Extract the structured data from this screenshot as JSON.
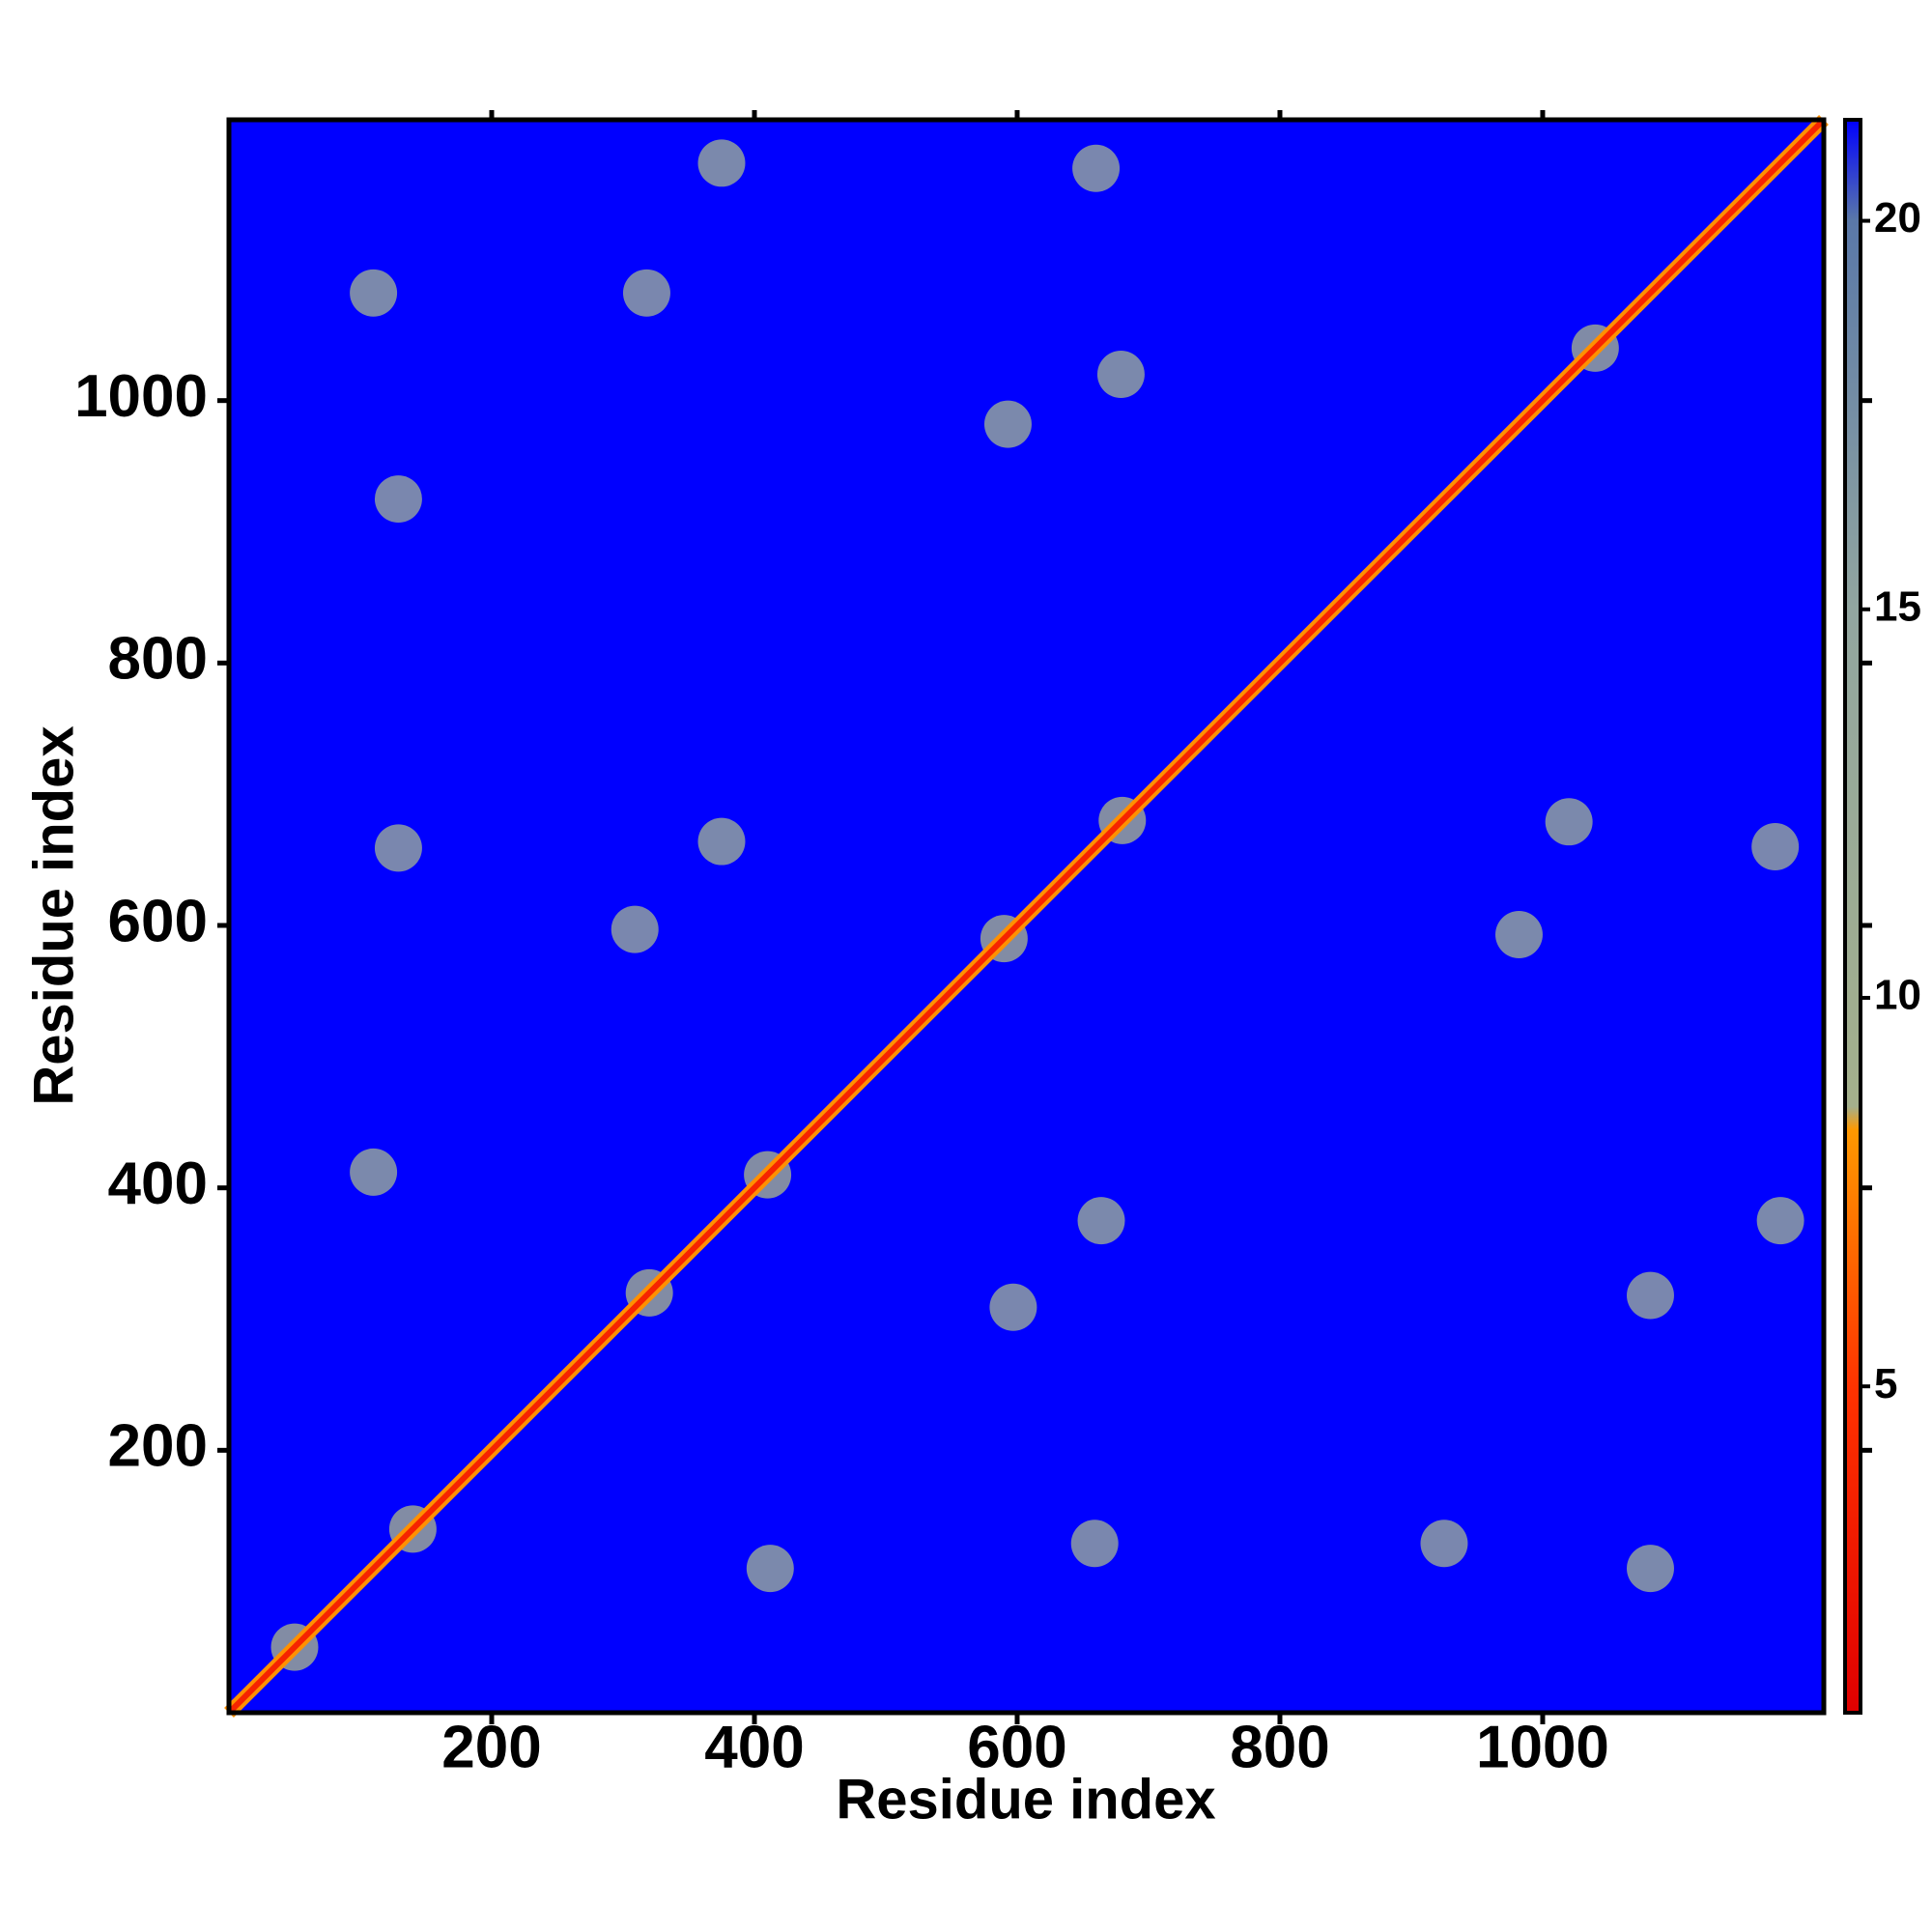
{
  "chart_data": {
    "type": "heatmap",
    "xlabel": "Residue index",
    "ylabel": "Residue index",
    "xlim": [
      0,
      1214
    ],
    "ylim": [
      0,
      1214
    ],
    "xticks": [
      200,
      400,
      600,
      800,
      1000
    ],
    "yticks": [
      200,
      400,
      600,
      800,
      1000
    ],
    "clim": [
      0.8,
      21.3
    ],
    "cticks": [
      5,
      10,
      15,
      20
    ],
    "colorscale": [
      [
        0.8,
        "#e00000"
      ],
      [
        5,
        "#ff3300"
      ],
      [
        8.3,
        "#ff9900"
      ],
      [
        8.6,
        "#a4b08c"
      ],
      [
        15,
        "#92a6a0"
      ],
      [
        20,
        "#5a78a8"
      ],
      [
        21.3,
        "#0000ff"
      ]
    ],
    "background_value": 21.3,
    "diagonal_value": 3.8,
    "symmetric": true,
    "cell_size": 36,
    "points": {
      "x": [
        50,
        140,
        320,
        410,
        590,
        680,
        1040,
        375,
        110,
        129,
        593,
        660,
        129,
        375,
        110,
        309,
        318,
        679
      ],
      "y": [
        50,
        140,
        320,
        410,
        590,
        680,
        1040,
        1181,
        1082,
        925,
        982,
        1177,
        659,
        664,
        412,
        597,
        1082,
        1020
      ],
      "values": [
        9,
        9,
        9,
        9,
        9,
        9,
        10,
        12,
        12,
        13,
        12,
        13,
        13,
        12,
        12,
        13,
        13,
        12
      ]
    }
  }
}
